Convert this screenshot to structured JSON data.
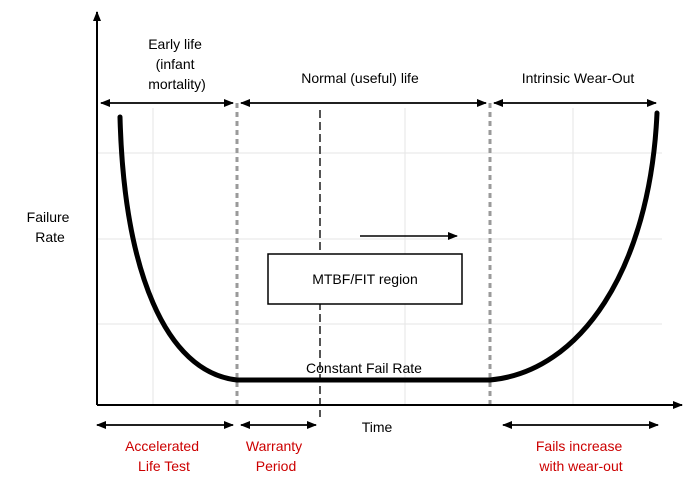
{
  "labels": {
    "early_life": [
      "Early life",
      "(infant",
      "mortality)"
    ],
    "normal_life": "Normal (useful) life",
    "wear_out": "Intrinsic Wear-Out",
    "y_axis": [
      "Failure",
      "Rate"
    ],
    "x_axis": "Time",
    "mtbf_box": "MTBF/FIT region",
    "constant_rate": "Constant Fail Rate",
    "accelerated": [
      "Accelerated",
      "Life Test"
    ],
    "warranty": [
      "Warranty",
      "Period"
    ],
    "fails_increase": [
      "Fails increase",
      "with wear-out"
    ]
  },
  "colors": {
    "curve": "#000000",
    "grid": "#e6e6e6",
    "phase_divider": "#9a9a9a",
    "warranty_divider": "#555555",
    "bottom_labels": "#cc0000"
  }
}
